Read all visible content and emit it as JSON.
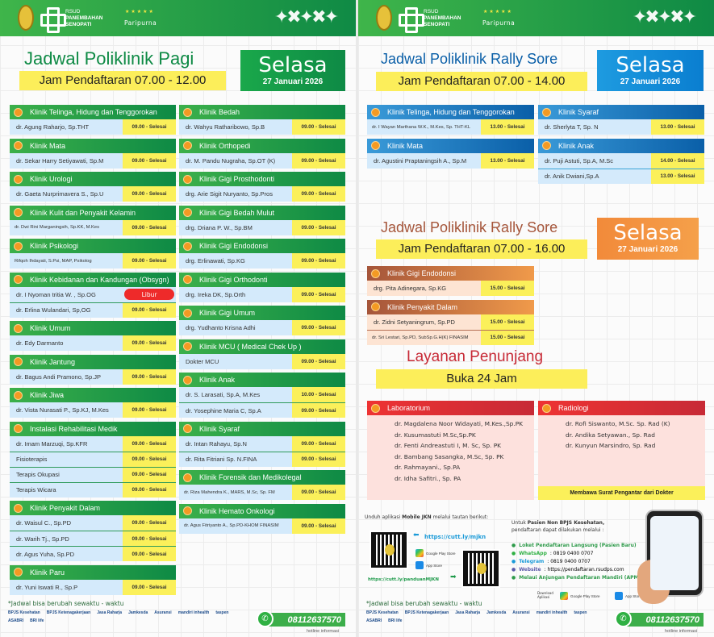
{
  "brand": {
    "rsud": "RSUD",
    "name1": "PANEMBAHAN",
    "name2": "SENOPATI",
    "accreditation": "Paripurna",
    "stars": "★★★★★"
  },
  "colors": {
    "green": "#0e8a45",
    "blue": "#0a5fa8",
    "orange": "#f09a4a",
    "red": "#ee3333",
    "yellow": "#fbf05a",
    "libur": "#ee2a2a"
  },
  "pagi": {
    "title": "Jadwal Poliklinik Pagi",
    "hours": "Jam Pendaftaran 07.00 - 12.00",
    "day": "Selasa",
    "date": "27 Januari 2026",
    "col1": [
      {
        "name": "Klinik Telinga, Hidung dan Tenggorokan",
        "icon": "ear-icon",
        "doctors": [
          {
            "n": "dr. Agung Raharjo, Sp.THT",
            "t": "09.00 - Selesai"
          }
        ]
      },
      {
        "name": "Klinik Mata",
        "icon": "eye-icon",
        "doctors": [
          {
            "n": "dr. Sekar Harry Setiyawati, Sp.M",
            "t": "09.00 - Selesai"
          }
        ]
      },
      {
        "name": "Klinik Urologi",
        "icon": "kidney-icon",
        "doctors": [
          {
            "n": "dr. Gaeta Nurprimavera S., Sp.U",
            "t": "09.00 - Selesai"
          }
        ]
      },
      {
        "name": "Klinik Kulit dan Penyakit Kelamin",
        "icon": "skin-icon",
        "doctors": [
          {
            "n": "dr. Dwi Rini Marganingsih, Sp.KK, M.Kes",
            "t": "09.00 - Selesai",
            "small": true
          }
        ]
      },
      {
        "name": "Klinik Psikologi",
        "icon": "head-icon",
        "doctors": [
          {
            "n": "Rifqoh Ihdayati, S.Psi, MAP, Psikolog",
            "t": "09.00 - Selesai",
            "small": true
          }
        ]
      },
      {
        "name": "Klinik Kebidanan dan Kandungan (Obsygn)",
        "icon": "pregnancy-icon",
        "doctors": [
          {
            "n": "dr. I Nyoman tritia W. , Sp.OG",
            "t": "Libur",
            "libur": true
          },
          {
            "n": "dr. Erlina Wulandari, Sp,OG",
            "t": "09.00 - Selesai"
          }
        ]
      },
      {
        "name": "Klinik Umum",
        "icon": "stethoscope-icon",
        "doctors": [
          {
            "n": "dr. Edy Darmanto",
            "t": "09.00 - Selesai"
          }
        ]
      },
      {
        "name": "Klinik Jantung",
        "icon": "heart-icon",
        "doctors": [
          {
            "n": "dr. Bagus Andi Pramono, Sp.JP",
            "t": "09.00 - Selesai"
          }
        ]
      },
      {
        "name": "Klinik Jiwa",
        "icon": "mind-icon",
        "doctors": [
          {
            "n": "dr. Vista Nurasati P., Sp.KJ, M.Kes",
            "t": "09.00 - Selesai"
          }
        ]
      },
      {
        "name": "Instalasi Rehabilitasi Medik",
        "icon": "rehab-icon",
        "doctors": [
          {
            "n": "dr. Imam Marzuqi, Sp.KFR",
            "t": "09.00 - Selesai"
          },
          {
            "n": "Fisioterapis",
            "t": "09.00 - Selesai"
          },
          {
            "n": "Terapis Okupasi",
            "t": "09.00 - Selesai"
          },
          {
            "n": "Terapis Wicara",
            "t": "09.00 - Selesai"
          }
        ]
      },
      {
        "name": "Klinik Penyakit Dalam",
        "icon": "doctor-icon",
        "doctors": [
          {
            "n": "dr. Waisul C., Sp.PD",
            "t": "09.00 - Selesai"
          },
          {
            "n": "dr. Warih Tj., Sp.PD",
            "t": "09.00 - Selesai"
          },
          {
            "n": "dr. Agus Yuha, Sp.PD",
            "t": "09.00 - Selesai"
          }
        ]
      },
      {
        "name": "Klinik Paru",
        "icon": "lungs-icon",
        "doctors": [
          {
            "n": "dr. Yuni Iswati R., Sp.P",
            "t": "09.00 - Selesai"
          }
        ]
      }
    ],
    "col2": [
      {
        "name": "Klinik Bedah",
        "icon": "surgery-icon",
        "doctors": [
          {
            "n": "dr. Wahyu Ratharibowo, Sp.B",
            "t": "09.00 - Selesai"
          }
        ]
      },
      {
        "name": "Klinik Orthopedi",
        "icon": "bone-icon",
        "doctors": [
          {
            "n": "dr. M. Pandu Nugraha, Sp.OT (K)",
            "t": "09.00 - Selesai"
          }
        ]
      },
      {
        "name": "Klinik Gigi Prosthodonti",
        "icon": "tooth-icon",
        "doctors": [
          {
            "n": "drg. Arie Sigit Nuryanto, Sp.Pros",
            "t": "09.00 - Selesai"
          }
        ]
      },
      {
        "name": "Klinik Gigi Bedah Mulut",
        "icon": "tooth-icon",
        "doctors": [
          {
            "n": "drg. Driana P. W., Sp.BM",
            "t": "09.00 - Selesai"
          }
        ]
      },
      {
        "name": "Klinik Gigi Endodonsi",
        "icon": "tooth-icon",
        "doctors": [
          {
            "n": "drg. Erlinawati, Sp.KG",
            "t": "09.00 - Selesai"
          }
        ]
      },
      {
        "name": "Klinik Gigi Orthodonti",
        "icon": "tooth-icon",
        "doctors": [
          {
            "n": "drg. Ireka DK, Sp.Orth",
            "t": "09.00 - Selesai"
          }
        ]
      },
      {
        "name": "Klinik Gigi Umum",
        "icon": "tooth-icon",
        "doctors": [
          {
            "n": "drg. Yudhanto Krisna Adhi",
            "t": "09.00 - Selesai"
          }
        ]
      },
      {
        "name": "Klinik MCU ( Medical Chek Up )",
        "icon": "stethoscope-icon",
        "doctors": [
          {
            "n": "Dokter MCU",
            "t": "09.00 - Selesai"
          }
        ]
      },
      {
        "name": "Klinik Anak",
        "icon": "child-icon",
        "doctors": [
          {
            "n": "dr. S. Larasati, Sp.A, M.Kes",
            "t": "10.00 - Selesai"
          },
          {
            "n": "dr. Yosephine Maria C, Sp.A",
            "t": "09.00 - Selesai"
          }
        ]
      },
      {
        "name": "Klinik Syaraf",
        "icon": "brain-icon",
        "doctors": [
          {
            "n": "dr. Intan Rahayu, Sp.N",
            "t": "09.00 - Selesai"
          },
          {
            "n": "dr. Rita Fitriani Sp. N.FINA",
            "t": "09.00 - Selesai"
          }
        ]
      },
      {
        "name": "Klinik Forensik dan Medikolegal",
        "icon": "forensic-icon",
        "doctors": [
          {
            "n": "dr. Riza Mahendra K., MARS, M.Sc, Sp. FM",
            "t": "09.00 - Selesai",
            "small": true
          }
        ]
      },
      {
        "name": "Klinik Hemato Onkologi",
        "icon": "blood-icon",
        "doctors": [
          {
            "n": "dr. Agus Fitriyanto A., Sp.PD-KHOM FINASIM",
            "t": "09.00 - Selesai",
            "small": true
          }
        ]
      }
    ],
    "footnote": "*Jadwal bisa berubah sewaktu - waktu"
  },
  "sore1": {
    "title": "Jadwal Poliklinik Rally Sore",
    "hours": "Jam Pendaftaran 07.00 - 14.00",
    "day": "Selasa",
    "date": "27 Januari 2026",
    "col1": [
      {
        "name": "Klinik Telinga, Hidung dan Tenggorokan",
        "icon": "ear-icon",
        "doctors": [
          {
            "n": "dr. I Wayan Marthana W.K., M.Kes, Sp. THT-KL",
            "t": "13.00 - Selesai",
            "small": true
          }
        ]
      },
      {
        "name": "Klinik Mata",
        "icon": "eye-icon",
        "doctors": [
          {
            "n": "dr. Agustini Praptaningsih A., Sp.M",
            "t": "13.00 - Selesai"
          }
        ]
      }
    ],
    "col2": [
      {
        "name": "Klinik Syaraf",
        "icon": "brain-icon",
        "doctors": [
          {
            "n": "dr. Sherlyta T, Sp. N",
            "t": "13.00 - Selesai"
          }
        ]
      },
      {
        "name": "Klinik Anak",
        "icon": "child-icon",
        "doctors": [
          {
            "n": "dr. Puji Astuti, Sp.A, M.Sc",
            "t": "14.00 - Selesai"
          },
          {
            "n": "dr. Anik Dwiani,Sp.A",
            "t": "13.00 - Selesai"
          }
        ]
      }
    ]
  },
  "sore2": {
    "title": "Jadwal Poliklinik Rally Sore",
    "hours": "Jam Pendaftaran 07.00 - 16.00",
    "day": "Selasa",
    "date": "27 Januari 2026",
    "col1": [
      {
        "name": "Klinik Gigi Endodonsi",
        "icon": "tooth-icon",
        "doctors": [
          {
            "n": "drg. Pita Adinegara, Sp.KG",
            "t": "15.00 - Selesai"
          }
        ]
      },
      {
        "name": "Klinik Penyakit Dalam",
        "icon": "doctor-icon",
        "doctors": [
          {
            "n": "dr. Zidni Setyaningrum, Sp.PD",
            "t": "15.00 - Selesai"
          },
          {
            "n": "dr. Sri Lestari, Sp.PD, SubSp.G.H(K) FINASIM",
            "t": "15.00 - Selesai",
            "small": true
          }
        ]
      }
    ]
  },
  "penunjang": {
    "title": "Layanan Penunjang",
    "hours": "Buka 24 Jam",
    "lab": {
      "name": "Laboratorium",
      "doctors": [
        "dr. Magdalena Noor Widayati, M.Kes.,Sp.PK",
        "dr. Kusumastuti M.Sc,Sp.PK",
        "dr. Fenti Andreastuti I, M. Sc, Sp. PK",
        "dr. Bambang Sasangka, M.Sc, Sp. PK",
        "dr. Rahmayani., Sp.PA",
        "dr. Idha Safitri., Sp. PA"
      ]
    },
    "rad": {
      "name": "Radiologi",
      "doctors": [
        "dr. Rofi Siswanto, M.Sc. Sp. Rad (K)",
        "dr. Andika Setyawan., Sp. Rad",
        "dr. Kunyun Marsindro, Sp. Rad"
      ],
      "note": "Membawa Surat Pengantar dari Dokter"
    }
  },
  "jkn": {
    "intro_pre": "Unduh aplikasi ",
    "intro_app": "Mobile JKN",
    "intro_post": " melalui tautan berikut:",
    "link1": "https://cutt.ly/mjkn",
    "link2": "https://cutt.ly/panduanMJKN",
    "google": "Google Play Store",
    "apple": "App Store"
  },
  "nonbpjs": {
    "intro1": "Untuk ",
    "intro_bold": "Pasien Non BPJS Kesehatan,",
    "intro2": "pendaftaran dapat dilakukan melalui :",
    "items": [
      {
        "label": "Loket Pendaftaran Langsung (Pasien Baru)",
        "value": "",
        "icon": "building-icon"
      },
      {
        "label": "WhatsApp",
        "value": ": 0819 0400 0707",
        "icon": "whatsapp-icon"
      },
      {
        "label": "Telegram",
        "value": ": 0819 0400 0707",
        "icon": "telegram-icon"
      },
      {
        "label": "Website",
        "value": ": https://pendaftaran.rsudps.com",
        "icon": "globe-icon"
      },
      {
        "label": "Melaui Anjungan Pendaftaran Mandiri (APM)",
        "value": "",
        "icon": "kiosk-icon"
      }
    ],
    "download": "Download Aplikasi",
    "google": "Google Play Store",
    "apple": "App Store"
  },
  "footer": {
    "partners": [
      "BPJS Kesehatan",
      "BPJS Ketenagakerjaan",
      "Jasa Raharja",
      "Jamkesda",
      "Asuransi",
      "mandiri inhealth",
      "taspen",
      "ASABRI",
      "BRI life"
    ],
    "hotline": "08112637570",
    "hotline_label": "hotline informasi"
  }
}
